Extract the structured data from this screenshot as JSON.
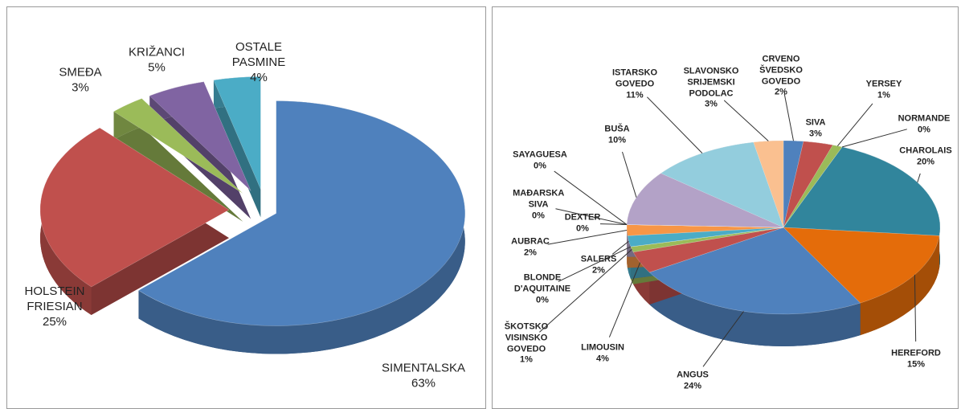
{
  "chart_data": [
    {
      "type": "pie",
      "categories": [
        "SIMENTALSKA",
        "HOLSTEIN FRIESIAN",
        "SMEĐA",
        "KRIŽANCI",
        "OSTALE PASMINE"
      ],
      "values": [
        63,
        25,
        3,
        5,
        4
      ],
      "value_labels": [
        "63%",
        "25%",
        "3%",
        "5%",
        "4%"
      ],
      "colors": [
        "#4f81bd",
        "#c0504d",
        "#9bbb59",
        "#8064a2",
        "#4bacc6"
      ]
    },
    {
      "type": "pie",
      "categories": [
        "CRVENO ŠVEDSKO GOVEDO",
        "SIVA",
        "YERSEY",
        "NORMANDE",
        "CHAROLAIS",
        "HEREFORD",
        "ANGUS",
        "LIMOUSIN",
        "ŠKOTSKO VISINSKO GOVEDO",
        "BLONDE D'AQUITAINE",
        "SALERS",
        "AUBRAC",
        "DEXTER",
        "MAĐARSKA SIVA",
        "SAYAGUESA",
        "BUŠA",
        "ISTARSKO GOVEDO",
        "SLAVONSKO SRIJEMSKI PODOLAC"
      ],
      "values": [
        2,
        3,
        1,
        0,
        20,
        15,
        24,
        4,
        1,
        0,
        2,
        2,
        0,
        0,
        0,
        10,
        11,
        3
      ],
      "value_labels": [
        "2%",
        "3%",
        "1%",
        "0%",
        "20%",
        "15%",
        "24%",
        "4%",
        "1%",
        "0%",
        "2%",
        "2%",
        "0%",
        "0%",
        "0%",
        "10%",
        "11%",
        "3%"
      ],
      "colors": [
        "#4f81bd",
        "#c0504d",
        "#9bbb59",
        "#8064a2",
        "#31859c",
        "#e46c0a",
        "#4f81bd",
        "#c0504d",
        "#9bbb59",
        "#8064a2",
        "#4bacc6",
        "#f79646",
        "#7f9fcf",
        "#d47c7a",
        "#b3cf86",
        "#b3a2c7",
        "#93cddd",
        "#fac090"
      ]
    }
  ]
}
